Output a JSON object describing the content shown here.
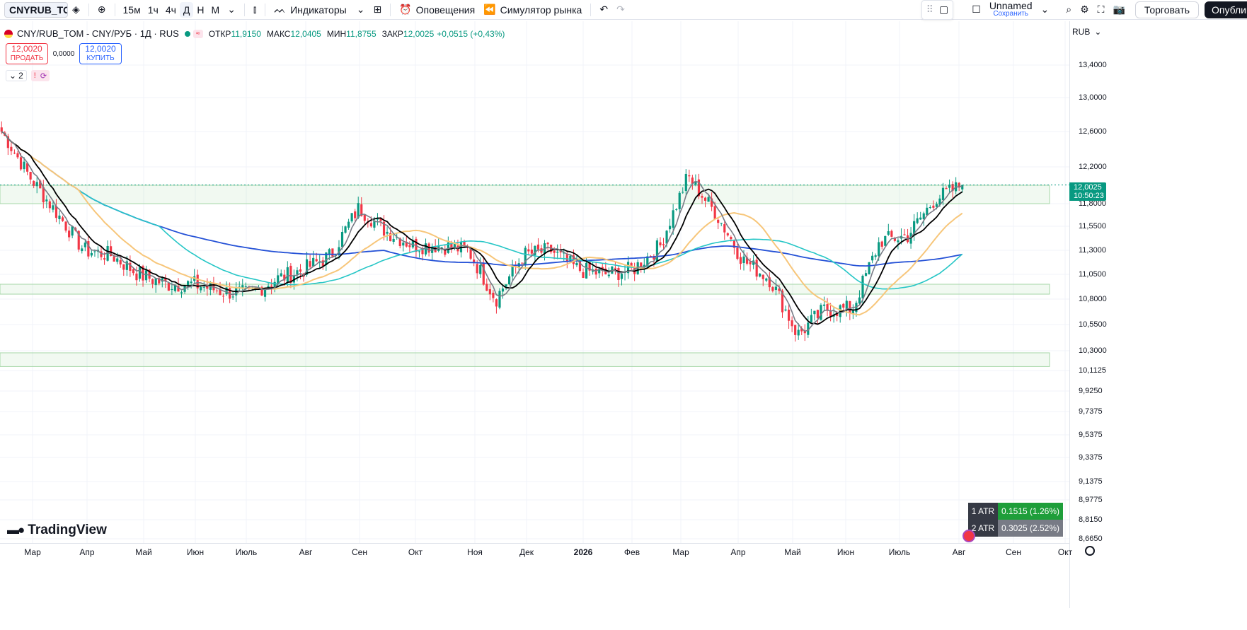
{
  "toolbar": {
    "symbol": "CNYRUB_TOM",
    "intervals": [
      "15м",
      "1ч",
      "4ч",
      "Д",
      "Н",
      "М"
    ],
    "active_interval": "Д",
    "indicators_label": "Индикаторы",
    "alerts_label": "Оповещения",
    "replay_label": "Симулятор рынка",
    "layout_name": "Unnamed",
    "save_label": "Сохранить",
    "trade_label": "Торговать",
    "publish_label": "Опубликовать"
  },
  "legend": {
    "title": "CNY/RUB_TOM - CNY/РУБ · 1Д · RUS",
    "open_label": "ОТКР",
    "open": "11,9150",
    "high_label": "МАКС",
    "high": "12,0405",
    "low_label": "МИН",
    "low": "11,8755",
    "close_label": "ЗАКР",
    "close": "12,0025",
    "change": "+0,0515 (+0,43%)"
  },
  "trade_panel": {
    "sell_price": "12,0020",
    "sell_label": "ПРОДАТЬ",
    "spread": "0,0000",
    "buy_price": "12,0020",
    "buy_label": "КУПИТЬ"
  },
  "indicator_row": {
    "count": "2",
    "alert": "!"
  },
  "price_axis": {
    "currency": "RUB",
    "labels": [
      "13,4000",
      "13,0000",
      "12,6000",
      "12,2000",
      "11,8000",
      "11,5500",
      "11,3000",
      "11,0500",
      "10,8000",
      "10,5500",
      "10,3000",
      "10,1125",
      "9,9250",
      "9,7375",
      "9,5375",
      "9,3375",
      "9,1375",
      "8,9775",
      "8,8150",
      "8,6650"
    ],
    "current_price": "12,0025",
    "countdown": "10:50:23"
  },
  "time_axis": {
    "labels": [
      "Мар",
      "Апр",
      "Май",
      "Июн",
      "Июль",
      "Авг",
      "Сен",
      "Окт",
      "Ноя",
      "Дек",
      "2026",
      "Фев",
      "Мар",
      "Апр",
      "Май",
      "Июн",
      "Июль",
      "Авг",
      "Сен",
      "Окт"
    ]
  },
  "atr": [
    {
      "label": "1 ATR",
      "value": "0.1515 (1.26%)",
      "color": "#1e9e3a"
    },
    {
      "label": "2 ATR",
      "value": "0.3025 (2.52%)",
      "color": "#787b86"
    }
  ],
  "logo_text": "TradingView",
  "colors": {
    "up": "#089981",
    "down": "#f23645",
    "ma_fast": "#787b86",
    "ma_mid": "#000000",
    "ma_orange": "#f7c67a",
    "ma_teal": "#26c6c6",
    "ma_blue": "#2451d6"
  },
  "chart_data": {
    "type": "candlestick",
    "x_range": [
      "Мар",
      "Окт"
    ],
    "ylim": [
      8.665,
      13.4
    ],
    "close_path": [
      [
        "Мар",
        12.6
      ],
      [
        "Мар",
        12.1
      ],
      [
        "Апр",
        11.7
      ],
      [
        "Апр",
        11.3
      ],
      [
        "Май",
        11.25
      ],
      [
        "Май",
        11.05
      ],
      [
        "Июн",
        10.95
      ],
      [
        "Июн",
        10.95
      ],
      [
        "Июль",
        10.88
      ],
      [
        "Июль",
        10.85
      ],
      [
        "Авг",
        11.0
      ],
      [
        "Авг",
        11.1
      ],
      [
        "Сен",
        11.25
      ],
      [
        "Сен",
        11.75
      ],
      [
        "Окт",
        11.5
      ],
      [
        "Окт",
        11.35
      ],
      [
        "Ноя",
        11.35
      ],
      [
        "Ноя",
        11.3
      ],
      [
        "Дек",
        10.8
      ],
      [
        "Дек",
        11.25
      ],
      [
        "2026",
        11.3
      ],
      [
        "2026",
        11.1
      ],
      [
        "Фев",
        11.05
      ],
      [
        "Фев",
        11.1
      ],
      [
        "Мар",
        11.35
      ],
      [
        "Мар",
        12.1
      ],
      [
        "Апр",
        11.7
      ],
      [
        "Апр",
        11.2
      ],
      [
        "Май",
        11.0
      ],
      [
        "Май",
        10.45
      ],
      [
        "Июн",
        10.7
      ],
      [
        "Июн",
        10.7
      ],
      [
        "Июль",
        11.4
      ],
      [
        "Июль",
        11.45
      ],
      [
        "Авг",
        11.85
      ],
      [
        "Авг",
        12.0025
      ]
    ],
    "zones": [
      {
        "from": 11.8,
        "to": 12.0
      },
      {
        "from": 10.85,
        "to": 10.95
      },
      {
        "from": 10.15,
        "to": 10.28
      }
    ]
  }
}
